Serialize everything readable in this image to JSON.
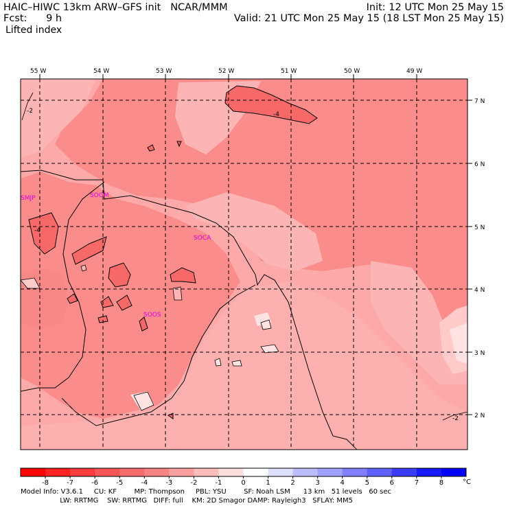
{
  "header": {
    "model": "HAIC–HIWC 13km ARW–GFS init",
    "org": "NCAR/MMM",
    "init": "Init: 12 UTC Mon 25 May 15",
    "fcst_label": "Fcst:",
    "fcst_value": "9 h",
    "valid": "Valid: 21 UTC Mon 25 May 15 (18 LST Mon 25 May 15)",
    "field": "Lifted index"
  },
  "map": {
    "lon_labels": [
      "55 W",
      "54 W",
      "53 W",
      "52 W",
      "51 W",
      "50 W",
      "49 W"
    ],
    "lat_labels": [
      "7 N",
      "6 N",
      "5 N",
      "4 N",
      "3 N",
      "2 N"
    ],
    "contour_labels": [
      "-2",
      "-4",
      "-4",
      "-2"
    ],
    "stations": [
      "SMJP",
      "SOGM",
      "SOCA",
      "SOOS"
    ],
    "colors": {
      "base": "#fda9a9",
      "mid": "#fb8c8c",
      "strong": "#f76868",
      "light": "#fecaca",
      "pale": "#ffe2e2"
    }
  },
  "colorbar": {
    "ticks": [
      "-8",
      "-7",
      "-6",
      "-5",
      "-4",
      "-3",
      "-2",
      "-1",
      "0",
      "1",
      "2",
      "3",
      "4",
      "5",
      "6",
      "7",
      "8"
    ],
    "unit": "°C",
    "colors": [
      "#ff0000",
      "#ff2222",
      "#fb3c3c",
      "#f85656",
      "#f56c6c",
      "#f88484",
      "#fba0a0",
      "#fdbcbc",
      "#ffdede",
      "#ffffff",
      "#dedeff",
      "#bcbcff",
      "#a0a0ff",
      "#8080ff",
      "#6060ff",
      "#3c3cff",
      "#1a1aff",
      "#0000ff"
    ]
  },
  "model_info": {
    "line1": "Model Info: V3.6.1     CU: KF        MP: Thompson     PBL: YSU        SF: Noah LSM      13 km   51 levels   60 sec",
    "line2": "                  LW: RRTMG    SW: RRTMG   DIFF: full    KM: 2D Smagor DAMP: Rayleigh3   SFLAY: MM5"
  }
}
